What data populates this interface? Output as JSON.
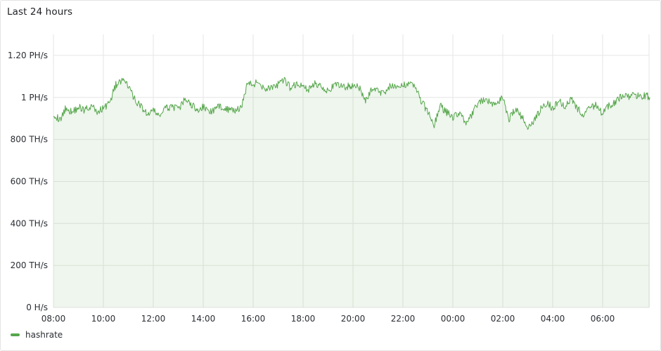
{
  "panel": {
    "title": "Last 24 hours"
  },
  "chart_data": {
    "type": "area",
    "title": "Last 24 hours",
    "xlabel": "",
    "ylabel": "",
    "grid": true,
    "legend_placement": "bottom-left",
    "x_ticks": [
      "08:00",
      "10:00",
      "12:00",
      "14:00",
      "16:00",
      "18:00",
      "20:00",
      "22:00",
      "00:00",
      "02:00",
      "04:00",
      "06:00"
    ],
    "x_range_hours": [
      0,
      23.9
    ],
    "ylim_ths": [
      0,
      1300
    ],
    "y_ticks": [
      {
        "value": 0,
        "label": "0 H/s"
      },
      {
        "value": 200,
        "label": "200 TH/s"
      },
      {
        "value": 400,
        "label": "400 TH/s"
      },
      {
        "value": 600,
        "label": "600 TH/s"
      },
      {
        "value": 800,
        "label": "800 TH/s"
      },
      {
        "value": 1000,
        "label": "1 PH/s"
      },
      {
        "value": 1200,
        "label": "1.20 PH/s"
      }
    ],
    "series": [
      {
        "name": "hashrate",
        "color": "#56a64b",
        "unit": "TH/s",
        "x": [
          0,
          0.25,
          0.5,
          0.75,
          1,
          1.25,
          1.5,
          1.75,
          2,
          2.25,
          2.5,
          2.75,
          3,
          3.25,
          3.5,
          3.75,
          4,
          4.25,
          4.5,
          4.75,
          5,
          5.25,
          5.5,
          5.75,
          6,
          6.25,
          6.5,
          6.75,
          7,
          7.25,
          7.5,
          7.75,
          8,
          8.25,
          8.5,
          8.75,
          9,
          9.25,
          9.5,
          9.75,
          10,
          10.25,
          10.5,
          10.75,
          11,
          11.25,
          11.5,
          11.75,
          12,
          12.25,
          12.5,
          12.75,
          13,
          13.25,
          13.5,
          13.75,
          14,
          14.25,
          14.5,
          14.75,
          15,
          15.25,
          15.5,
          15.75,
          16,
          16.25,
          16.5,
          16.75,
          17,
          17.25,
          17.5,
          17.75,
          18,
          18.25,
          18.5,
          18.75,
          19,
          19.25,
          19.5,
          19.75,
          20,
          20.25,
          20.5,
          20.75,
          21,
          21.25,
          21.5,
          21.75,
          22,
          22.25,
          22.5,
          22.75,
          23,
          23.25,
          23.5,
          23.75,
          23.9
        ],
        "values": [
          925,
          890,
          950,
          930,
          955,
          940,
          960,
          930,
          950,
          975,
          1060,
          1080,
          1055,
          990,
          960,
          920,
          935,
          915,
          945,
          960,
          940,
          985,
          970,
          940,
          955,
          930,
          945,
          960,
          940,
          935,
          945,
          1060,
          1065,
          1070,
          1040,
          1050,
          1060,
          1080,
          1045,
          1065,
          1050,
          1040,
          1065,
          1055,
          1030,
          1055,
          1060,
          1050,
          1060,
          1045,
          980,
          1040,
          1030,
          1020,
          1060,
          1040,
          1055,
          1075,
          1050,
          980,
          930,
          870,
          960,
          930,
          905,
          930,
          880,
          910,
          975,
          985,
          975,
          970,
          1000,
          900,
          945,
          910,
          860,
          890,
          940,
          975,
          950,
          985,
          960,
          1000,
          945,
          915,
          950,
          965,
          920,
          960,
          975,
          1005,
          1000,
          1010,
          1005,
          1010,
          1000
        ]
      }
    ]
  }
}
